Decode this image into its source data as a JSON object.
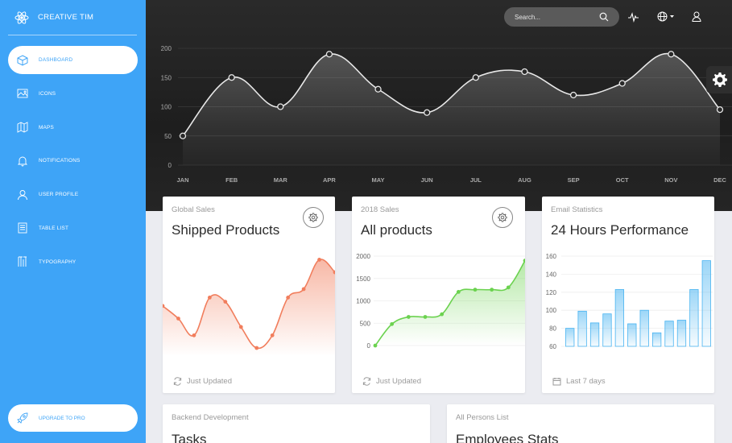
{
  "brand": {
    "name": "CREATIVE TIM"
  },
  "sidebar": {
    "items": [
      {
        "label": "DASHBOARD",
        "icon": "cube-icon",
        "active": true
      },
      {
        "label": "ICONS",
        "icon": "image-icon"
      },
      {
        "label": "MAPS",
        "icon": "map-icon"
      },
      {
        "label": "NOTIFICATIONS",
        "icon": "bell-icon"
      },
      {
        "label": "USER PROFILE",
        "icon": "user-icon"
      },
      {
        "label": "TABLE LIST",
        "icon": "list-icon"
      },
      {
        "label": "TYPOGRAPHY",
        "icon": "typography-icon"
      }
    ],
    "upgrade_label": "UPGRADE TO PRO"
  },
  "topbar": {
    "search_placeholder": "Search..."
  },
  "colors": {
    "sidebar": "#3ea4f7",
    "orange": "#f17e5d",
    "green": "#6bd24f",
    "blue": "#4ab4f1"
  },
  "cards": [
    {
      "subtitle": "Global Sales",
      "title": "Shipped Products",
      "footer": "Just Updated"
    },
    {
      "subtitle": "2018 Sales",
      "title": "All products",
      "footer": "Just Updated"
    },
    {
      "subtitle": "Email Statistics",
      "title": "24 Hours Performance",
      "footer": "Last 7 days"
    },
    {
      "subtitle": "Backend Development",
      "title": "Tasks"
    },
    {
      "subtitle": "All Persons List",
      "title": "Employees Stats"
    }
  ],
  "chart_data": [
    {
      "type": "line",
      "categories": [
        "JAN",
        "FEB",
        "MAR",
        "APR",
        "MAY",
        "JUN",
        "JUL",
        "AUG",
        "SEP",
        "OCT",
        "NOV",
        "DEC"
      ],
      "values": [
        50,
        150,
        100,
        190,
        130,
        90,
        150,
        160,
        120,
        140,
        190,
        95
      ],
      "ylim": [
        0,
        200
      ],
      "yticks": [
        0,
        50,
        100,
        150,
        200
      ],
      "grid": true
    },
    {
      "type": "line",
      "values": [
        100,
        70,
        30,
        120,
        110,
        50,
        0,
        30,
        120,
        140,
        210,
        180
      ],
      "color": "#f17e5d"
    },
    {
      "type": "line",
      "values": [
        0,
        480,
        640,
        640,
        700,
        1200,
        1250,
        1250,
        1300,
        1900
      ],
      "ylim": [
        0,
        2000
      ],
      "yticks": [
        0,
        500,
        1000,
        1500,
        2000
      ],
      "color": "#6bd24f"
    },
    {
      "type": "bar",
      "values": [
        80,
        99,
        86,
        96,
        123,
        85,
        100,
        75,
        88,
        89,
        123,
        155
      ],
      "ylim": [
        60,
        160
      ],
      "yticks": [
        60,
        80,
        100,
        120,
        140,
        160
      ],
      "color": "#4ab4f1"
    }
  ]
}
